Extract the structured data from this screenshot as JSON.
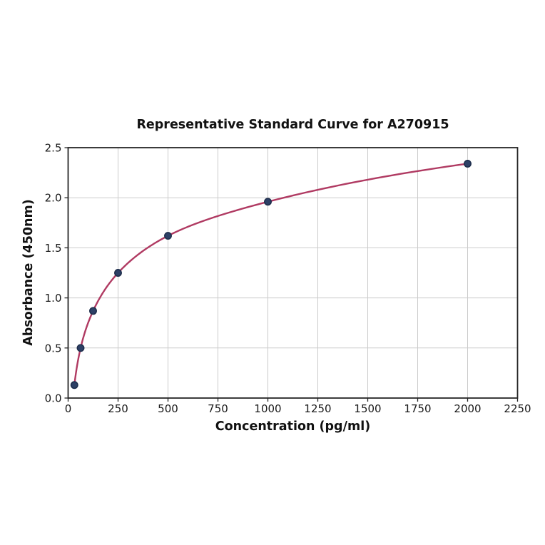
{
  "figure": {
    "background_color": "#ffffff"
  },
  "chart_data": {
    "type": "scatter",
    "title": "Representative Standard Curve for A270915",
    "xlabel": "Concentration (pg/ml)",
    "ylabel": "Absorbance (450nm)",
    "series": [
      {
        "name": "standard-curve",
        "x": [
          31.25,
          62.5,
          125,
          250,
          500,
          1000,
          2000
        ],
        "y": [
          0.13,
          0.5,
          0.87,
          1.25,
          1.62,
          1.96,
          2.34
        ]
      }
    ],
    "xlim": [
      0,
      2250
    ],
    "ylim": [
      0,
      2.5
    ],
    "x_ticks": [
      0,
      250,
      500,
      750,
      1000,
      1250,
      1500,
      1750,
      2000,
      2250
    ],
    "x_tick_labels": [
      "0",
      "250",
      "500",
      "750",
      "1000",
      "1250",
      "1500",
      "1750",
      "2000",
      "2250"
    ],
    "y_ticks": [
      0,
      0.5,
      1.0,
      1.5,
      2.0,
      2.5
    ],
    "y_tick_labels": [
      "0.0",
      "0.5",
      "1.0",
      "1.5",
      "2.0",
      "2.5"
    ],
    "grid": true,
    "legend": "none",
    "colors": {
      "curve": "#b03a62",
      "point_fill": "#2d4066",
      "point_edge": "#1c2c4a",
      "grid": "#cbcbcb",
      "spine": "#262626",
      "text": "#1a1a1a"
    }
  }
}
